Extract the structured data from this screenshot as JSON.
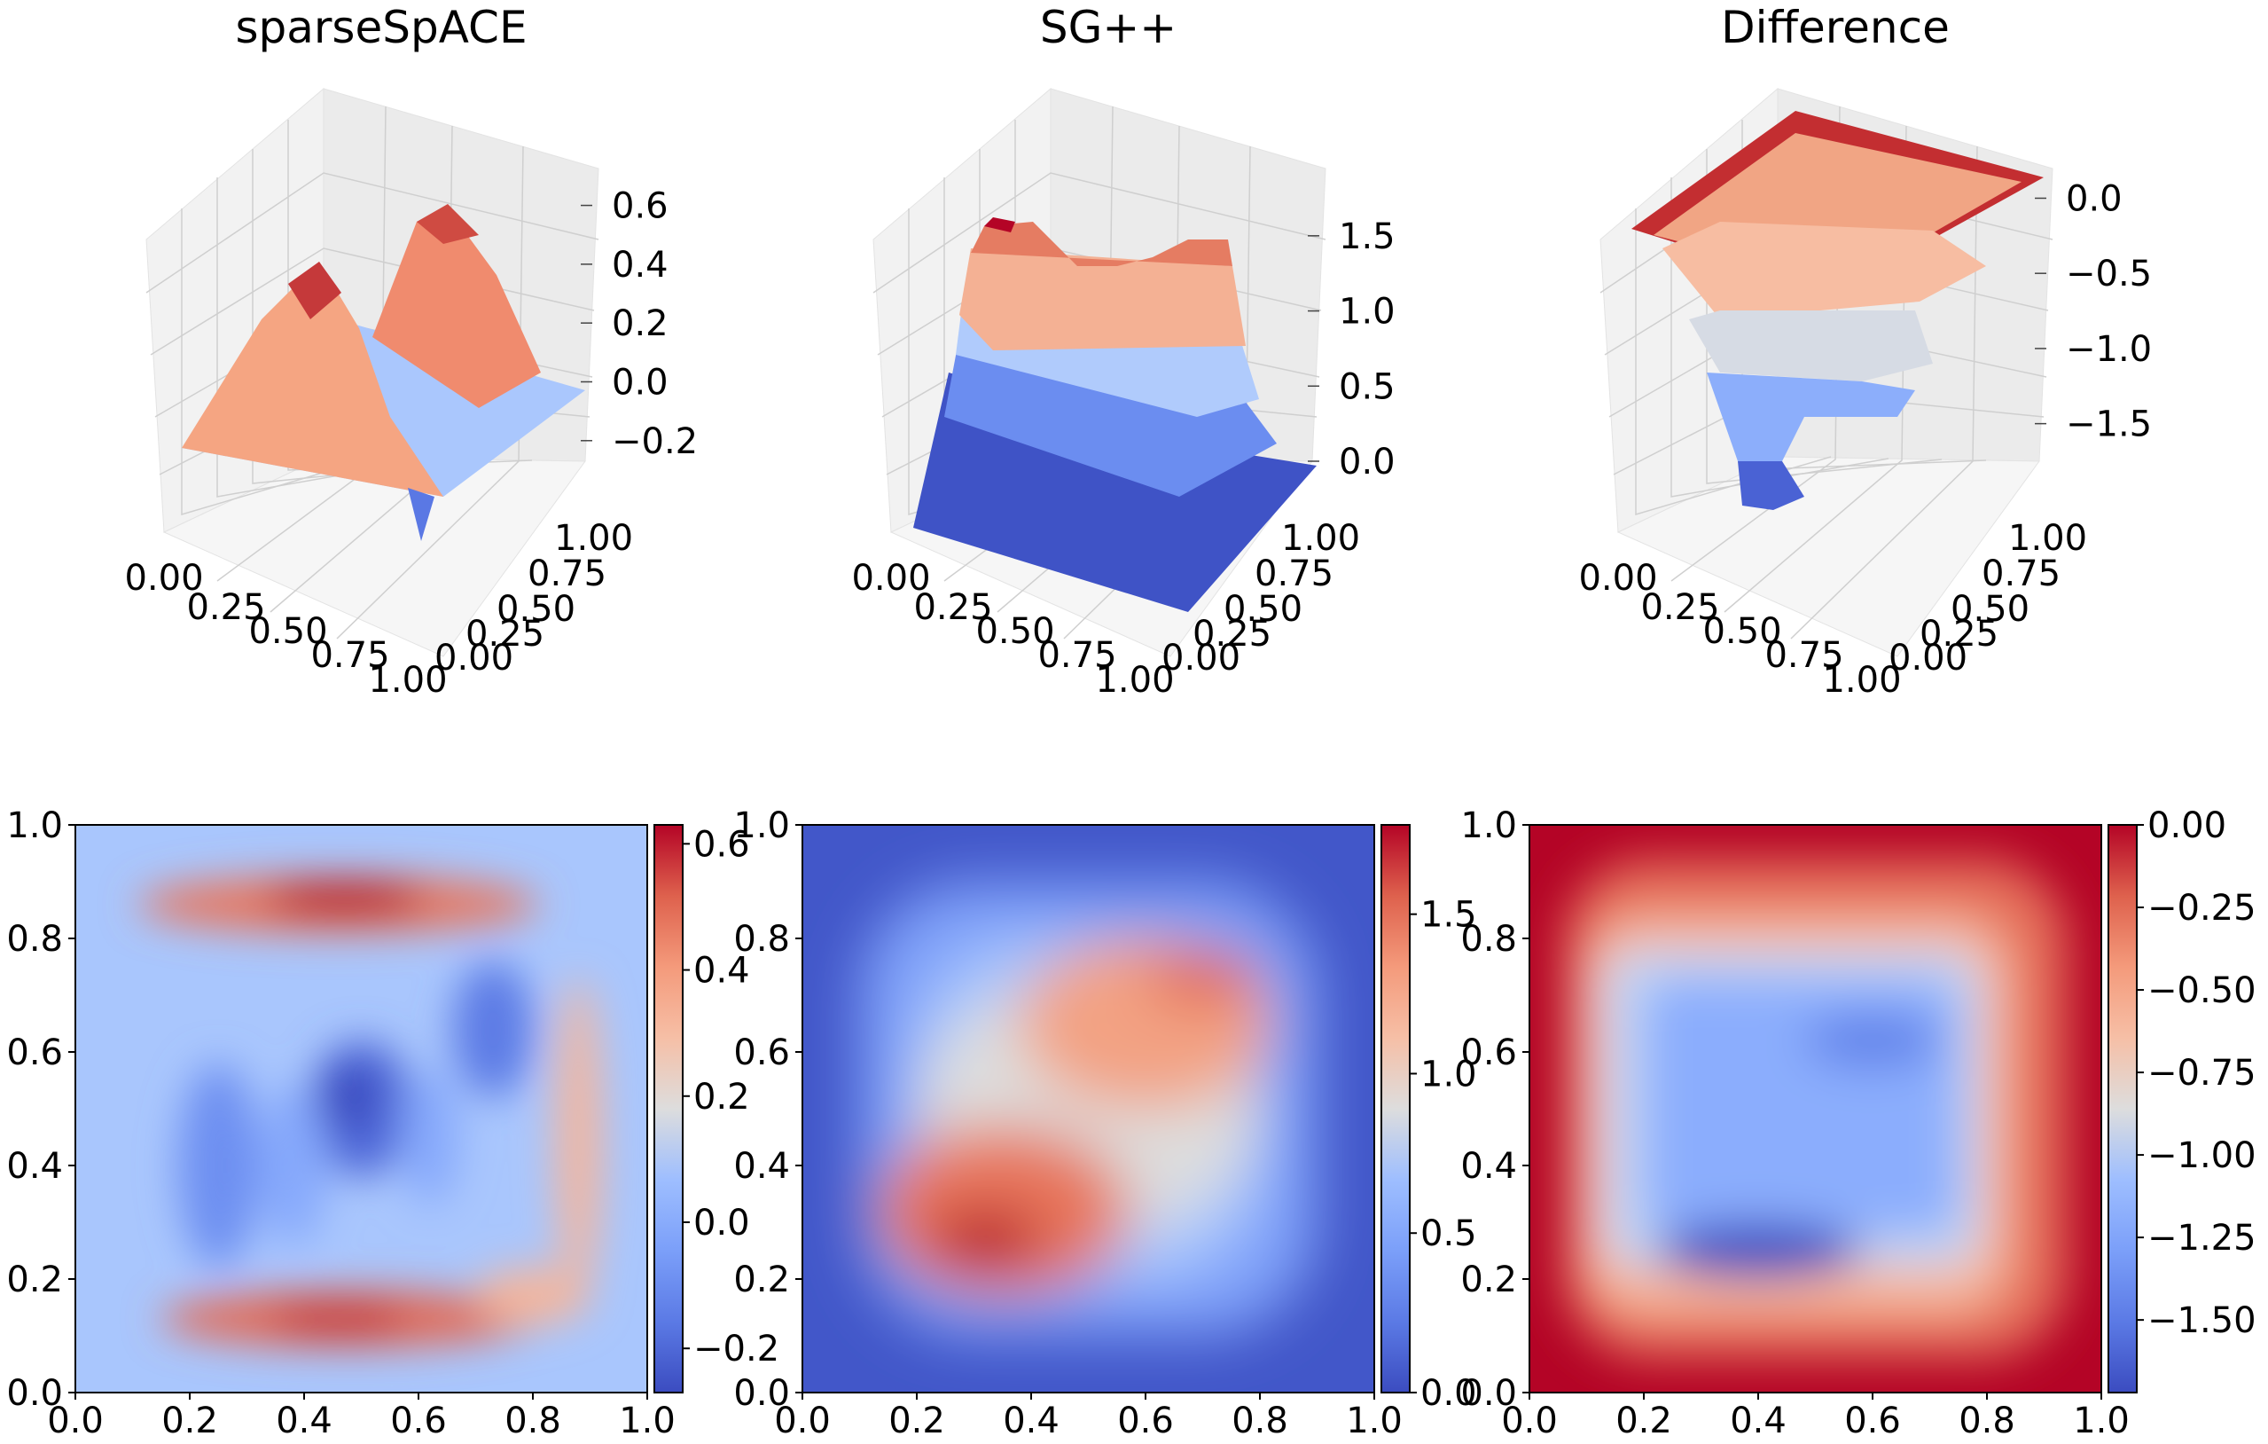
{
  "colormap": {
    "name": "coolwarm",
    "low": "#3b4cc0",
    "mid": "#dddddd",
    "high": "#b40426"
  },
  "chart_data": [
    {
      "type": "surface3d",
      "title": "sparseSpACE",
      "x_ticks": [
        "0.00",
        "0.25",
        "0.50",
        "0.75",
        "1.00"
      ],
      "y_ticks": [
        "0.00",
        "0.25",
        "0.50",
        "0.75",
        "1.00"
      ],
      "z_ticks": [
        "−0.2",
        "0.0",
        "0.2",
        "0.4",
        "0.6"
      ],
      "zlim": [
        -0.27,
        0.65
      ],
      "xlim": [
        0,
        1
      ],
      "ylim": [
        0,
        1
      ]
    },
    {
      "type": "surface3d",
      "title": "SG++",
      "x_ticks": [
        "0.00",
        "0.25",
        "0.50",
        "0.75",
        "1.00"
      ],
      "y_ticks": [
        "0.00",
        "0.25",
        "0.50",
        "0.75",
        "1.00"
      ],
      "z_ticks": [
        "0.0",
        "0.5",
        "1.0",
        "1.5"
      ],
      "zlim": [
        0,
        1.8
      ],
      "xlim": [
        0,
        1
      ],
      "ylim": [
        0,
        1
      ]
    },
    {
      "type": "surface3d",
      "title": "Difference",
      "x_ticks": [
        "0.00",
        "0.25",
        "0.50",
        "0.75",
        "1.00"
      ],
      "y_ticks": [
        "0.00",
        "0.25",
        "0.50",
        "0.75",
        "1.00"
      ],
      "z_ticks": [
        "0.0",
        "−0.5",
        "−1.0",
        "−1.5"
      ],
      "zlim": [
        -1.75,
        0.05
      ],
      "xlim": [
        0,
        1
      ],
      "ylim": [
        0,
        1
      ]
    },
    {
      "type": "heatmap",
      "x_ticks": [
        "0.0",
        "0.2",
        "0.4",
        "0.6",
        "0.8",
        "1.0"
      ],
      "y_ticks": [
        "0.0",
        "0.2",
        "0.4",
        "0.6",
        "0.8",
        "1.0"
      ],
      "xlim": [
        0,
        1
      ],
      "ylim": [
        0,
        1
      ],
      "colorbar_range": [
        -0.27,
        0.63
      ],
      "colorbar_ticks": [
        {
          "value": -0.2,
          "label": "−0.2"
        },
        {
          "value": 0.0,
          "label": "0.0"
        },
        {
          "value": 0.2,
          "label": "0.2"
        },
        {
          "value": 0.4,
          "label": "0.4"
        },
        {
          "value": 0.6,
          "label": "0.6"
        }
      ]
    },
    {
      "type": "heatmap",
      "x_ticks": [
        "0.0",
        "0.2",
        "0.4",
        "0.6",
        "0.8",
        "1.0"
      ],
      "y_ticks": [
        "0.0",
        "0.2",
        "0.4",
        "0.6",
        "0.8",
        "1.0"
      ],
      "xlim": [
        0,
        1
      ],
      "ylim": [
        0,
        1
      ],
      "colorbar_range": [
        0,
        1.78
      ],
      "colorbar_ticks": [
        {
          "value": 0.0,
          "label": "0.0"
        },
        {
          "value": 0.5,
          "label": "0.5"
        },
        {
          "value": 1.0,
          "label": "1.0"
        },
        {
          "value": 1.5,
          "label": "1.5"
        }
      ]
    },
    {
      "type": "heatmap",
      "x_ticks": [
        "0.0",
        "0.2",
        "0.4",
        "0.6",
        "0.8",
        "1.0"
      ],
      "y_ticks": [
        "0.0",
        "0.2",
        "0.4",
        "0.6",
        "0.8",
        "1.0"
      ],
      "xlim": [
        0,
        1
      ],
      "ylim": [
        0,
        1
      ],
      "colorbar_range": [
        -1.72,
        0.0
      ],
      "colorbar_ticks": [
        {
          "value": -1.5,
          "label": "−1.50"
        },
        {
          "value": -1.25,
          "label": "−1.25"
        },
        {
          "value": -1.0,
          "label": "−1.00"
        },
        {
          "value": -0.75,
          "label": "−0.75"
        },
        {
          "value": -0.5,
          "label": "−0.50"
        },
        {
          "value": -0.25,
          "label": "−0.25"
        },
        {
          "value": 0.0,
          "label": "0.00"
        }
      ]
    }
  ]
}
